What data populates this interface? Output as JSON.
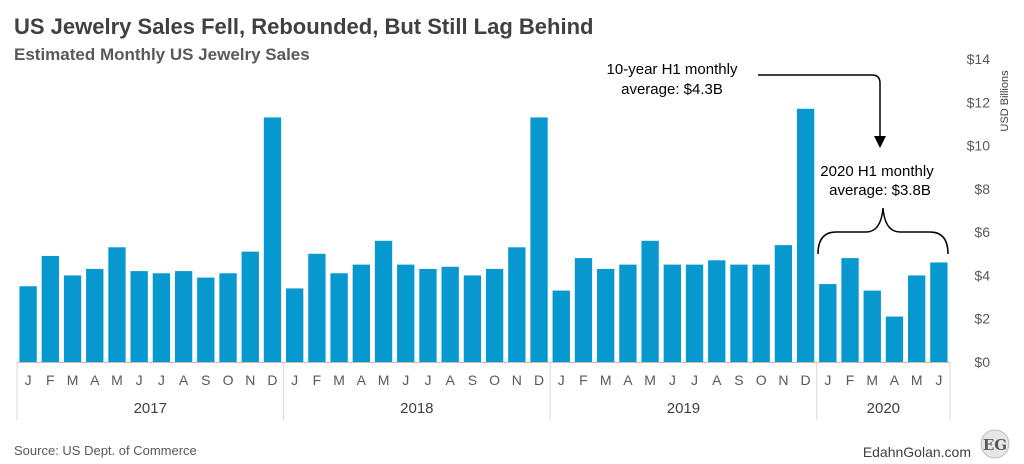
{
  "chart_data": {
    "type": "bar",
    "title": "US Jewelry Sales Fell, Rebounded, But Still Lag Behind",
    "subtitle": "Estimated Monthly US Jewelry Sales",
    "ylabel": "USD Billions",
    "ylim": [
      0,
      14
    ],
    "yticks": [
      "$0",
      "$2",
      "$4",
      "$6",
      "$8",
      "$10",
      "$12",
      "$14"
    ],
    "color": "#0898D0",
    "groups": [
      {
        "year": "2017",
        "months": [
          "J",
          "F",
          "M",
          "A",
          "M",
          "J",
          "J",
          "A",
          "S",
          "O",
          "N",
          "D"
        ],
        "values": [
          3.5,
          4.9,
          4.0,
          4.3,
          5.3,
          4.2,
          4.1,
          4.2,
          3.9,
          4.1,
          5.1,
          11.3
        ]
      },
      {
        "year": "2018",
        "months": [
          "J",
          "F",
          "M",
          "A",
          "M",
          "J",
          "J",
          "A",
          "S",
          "O",
          "N",
          "D"
        ],
        "values": [
          3.4,
          5.0,
          4.1,
          4.5,
          5.6,
          4.5,
          4.3,
          4.4,
          4.0,
          4.3,
          5.3,
          11.3
        ]
      },
      {
        "year": "2019",
        "months": [
          "J",
          "F",
          "M",
          "A",
          "M",
          "J",
          "J",
          "A",
          "S",
          "O",
          "N",
          "D"
        ],
        "values": [
          3.3,
          4.8,
          4.3,
          4.5,
          5.6,
          4.5,
          4.5,
          4.7,
          4.5,
          4.5,
          5.4,
          11.7
        ]
      },
      {
        "year": "2020",
        "months": [
          "J",
          "F",
          "M",
          "A",
          "M",
          "J"
        ],
        "values": [
          3.6,
          4.8,
          3.3,
          2.1,
          4.0,
          4.6
        ]
      }
    ],
    "annotations": [
      {
        "line1": "10-year H1 monthly",
        "line2": "average: $4.3B"
      },
      {
        "line1": "2020 H1 monthly",
        "line2": "average: $3.8B"
      }
    ]
  },
  "footer": {
    "source": "Source: US Dept. of Commerce",
    "brand": "EdahnGolan.com",
    "logo": "EG"
  }
}
